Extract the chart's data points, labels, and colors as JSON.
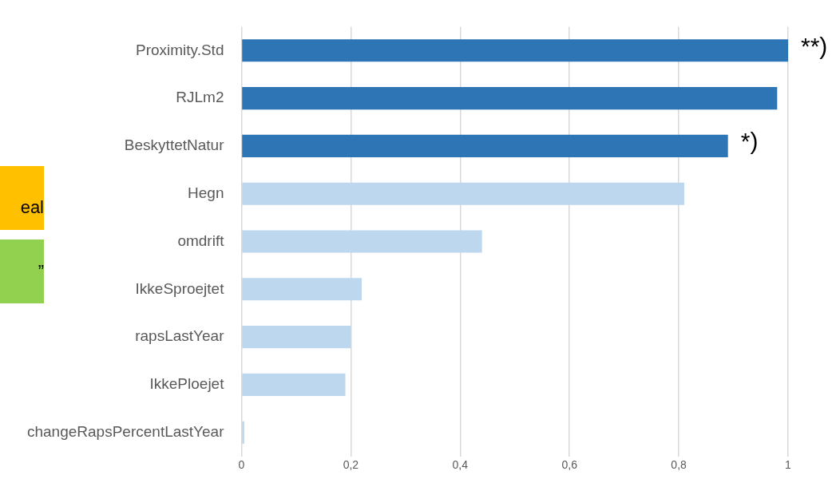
{
  "chart_data": {
    "type": "bar",
    "orientation": "horizontal",
    "categories": [
      "Proximity.Std",
      "RJLm2",
      "BeskyttetNatur",
      "Hegn",
      "omdrift",
      "IkkeSproejtet",
      "rapsLastYear",
      "IkkePloejet",
      "changeRapsPercentLastYear"
    ],
    "values": [
      1.0,
      0.98,
      0.89,
      0.81,
      0.44,
      0.22,
      0.2,
      0.19,
      0.005
    ],
    "colors": [
      "#2e75b6",
      "#2e75b6",
      "#2e75b6",
      "#bdd7ee",
      "#bdd7ee",
      "#bdd7ee",
      "#bdd7ee",
      "#bdd7ee",
      "#bdd7ee"
    ],
    "xlim": [
      0,
      1
    ],
    "xticks": [
      {
        "value": 0,
        "label": "0"
      },
      {
        "value": 0.2,
        "label": "0,2"
      },
      {
        "value": 0.4,
        "label": "0,4"
      },
      {
        "value": 0.6,
        "label": "0,6"
      },
      {
        "value": 0.8,
        "label": "0,8"
      },
      {
        "value": 1,
        "label": "1"
      }
    ],
    "grid": "x",
    "legend": false,
    "annotations": [
      {
        "text": "**)",
        "x": 1.0,
        "y": "Proximity.Std"
      },
      {
        "text": "*)",
        "x": 0.89,
        "y": "BeskyttetNatur"
      },
      "eal",
      "”"
    ]
  }
}
